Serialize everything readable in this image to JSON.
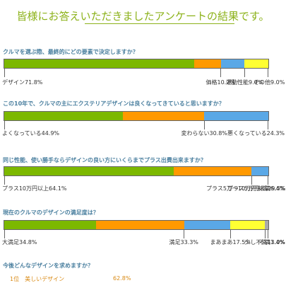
{
  "page": {
    "title": "皆様にお答えいただきましたアンケートの結果です。"
  },
  "colors": {
    "green": "#7cb800",
    "orange": "#ff9900",
    "blue": "#5aa8e6",
    "yellow": "#ffff33",
    "gray": "#aaaaaa"
  },
  "chart_data": [
    {
      "type": "bar",
      "orientation": "horizontal-stacked-100",
      "title": "クルマを選ぶ際、最終的にどの要素で決定しますか？",
      "series": [
        {
          "name": "デザイン",
          "value": 71.8,
          "color": "green",
          "label": "デザイン71.8%"
        },
        {
          "name": "価格",
          "value": 10.2,
          "color": "orange",
          "label": "価格10.2%"
        },
        {
          "name": "運動性能",
          "value": 9.0,
          "color": "blue",
          "label": "運動性能9.0%"
        },
        {
          "name": "その他",
          "value": 9.0,
          "color": "yellow",
          "label": "その他9.0%"
        }
      ]
    },
    {
      "type": "bar",
      "orientation": "horizontal-stacked-100",
      "title": "この10年で、クルマの主にエクステリアデザインは良くなってきていると思いますか？",
      "series": [
        {
          "name": "よくなっている",
          "value": 44.9,
          "color": "green",
          "label": "よくなっている44.9%"
        },
        {
          "name": "変わらない",
          "value": 30.8,
          "color": "orange",
          "label": "変わらない30.8%"
        },
        {
          "name": "悪くなっている",
          "value": 24.3,
          "color": "blue",
          "label": "悪くなっている24.3%"
        }
      ]
    },
    {
      "type": "bar",
      "orientation": "horizontal-stacked-100",
      "title": "同じ性能、使い勝手ならデザインの良い方にいくらまでプラス出費出来ますか？",
      "series": [
        {
          "name": "プラス10万円以上",
          "value": 64.1,
          "color": "green",
          "label": "プラス10万円以上64.1%"
        },
        {
          "name": "プラス5万〜10万円未満",
          "value": 29.5,
          "color": "orange",
          "label": "プラス5万〜10万円未満29.5%"
        },
        {
          "name": "プラス5万円未満",
          "value": 6.4,
          "color": "blue",
          "label": "プラス5万円未満6.4%"
        }
      ]
    },
    {
      "type": "bar",
      "orientation": "horizontal-stacked-100",
      "title": "現在のクルマのデザインの満足度は？",
      "series": [
        {
          "name": "大満足",
          "value": 34.8,
          "color": "green",
          "label": "大満足34.8%"
        },
        {
          "name": "満足",
          "value": 33.3,
          "color": "orange",
          "label": "満足33.3%"
        },
        {
          "name": "まあまあ",
          "value": 17.5,
          "color": "blue",
          "label": "まあまあ17.5%"
        },
        {
          "name": "少し不満",
          "value": 13.0,
          "color": "yellow",
          "label": "少し不満13.0%"
        },
        {
          "name": "不満",
          "value": 1.4,
          "color": "gray",
          "label": "不満1.4%"
        }
      ]
    }
  ],
  "question5": {
    "title": "今後どんなデザインを求めますか？",
    "rows": [
      {
        "label": "1位　美しいデザイン",
        "value": "62.8%"
      }
    ]
  }
}
